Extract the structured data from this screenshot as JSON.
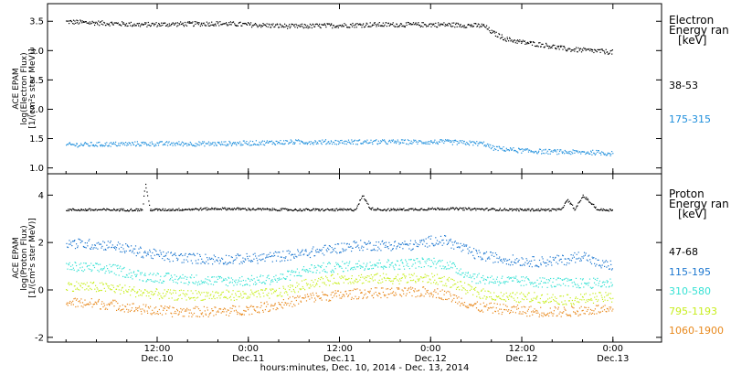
{
  "chart_data": [
    {
      "type": "scatter",
      "panel": "electron",
      "ylabel": [
        "ACE EPAM",
        "log(Electron Flux)",
        "[1/(cm²s ster MeV)]"
      ],
      "ylim": [
        0.9,
        3.8
      ],
      "yticks": [
        1.0,
        1.5,
        2.0,
        2.5,
        3.0,
        3.5
      ],
      "ytick_labels": [
        "1.0",
        "1.5",
        "2.0",
        "2.5",
        "3.0",
        "3.5"
      ],
      "legend_title": [
        "Electron",
        "Energy ran",
        "[keV]"
      ],
      "legend_placement": "right",
      "series": [
        {
          "name": "38-53",
          "color": "#000000",
          "x": [
            0,
            10,
            20,
            30,
            40,
            50,
            55,
            56,
            58,
            60,
            63,
            66,
            70,
            72
          ],
          "values": [
            3.5,
            3.45,
            3.47,
            3.42,
            3.45,
            3.45,
            3.43,
            3.32,
            3.2,
            3.15,
            3.1,
            3.03,
            3.0,
            2.98
          ]
        },
        {
          "name": "175-315",
          "color": "#1f8fdc",
          "x": [
            0,
            10,
            20,
            30,
            40,
            50,
            55,
            56,
            60,
            65,
            70,
            72
          ],
          "values": [
            1.4,
            1.42,
            1.42,
            1.45,
            1.45,
            1.45,
            1.42,
            1.35,
            1.3,
            1.28,
            1.27,
            1.25
          ]
        }
      ]
    },
    {
      "type": "scatter",
      "panel": "proton",
      "ylabel": [
        "ACE EPAM",
        "log(Proton Flux)",
        "[1/(cm²s ster MeV)]"
      ],
      "ylim": [
        -2.2,
        4.9
      ],
      "yticks": [
        -2,
        0,
        2,
        4
      ],
      "ytick_labels": [
        "-2",
        "0",
        "2",
        "4"
      ],
      "legend_title": [
        "Proton",
        "Energy ran",
        "[keV]"
      ],
      "legend_placement": "right",
      "series": [
        {
          "name": "47-68",
          "color": "#000000",
          "x": [
            0,
            8,
            10,
            10.4,
            11,
            13,
            20,
            30,
            38,
            39,
            40,
            42,
            50,
            60,
            65,
            66,
            67,
            68,
            70,
            72
          ],
          "values": [
            3.4,
            3.4,
            3.4,
            4.5,
            3.4,
            3.4,
            3.45,
            3.4,
            3.4,
            4.0,
            3.45,
            3.4,
            3.45,
            3.4,
            3.4,
            3.8,
            3.4,
            4.0,
            3.4,
            3.4
          ]
        },
        {
          "name": "115-195",
          "color": "#1f78d0",
          "x": [
            0,
            6,
            10,
            14,
            20,
            25,
            30,
            34,
            38,
            42,
            46,
            48,
            50,
            54,
            58,
            62,
            66,
            68,
            70,
            72
          ],
          "values": [
            2.0,
            1.9,
            1.6,
            1.4,
            1.3,
            1.35,
            1.5,
            1.7,
            1.9,
            1.9,
            1.9,
            2.1,
            2.1,
            1.5,
            1.3,
            1.2,
            1.3,
            1.5,
            1.1,
            1.05
          ]
        },
        {
          "name": "310-580",
          "color": "#36e2d4",
          "x": [
            0,
            6,
            10,
            14,
            20,
            24,
            28,
            32,
            36,
            40,
            44,
            48,
            50,
            54,
            58,
            62,
            66,
            70,
            72
          ],
          "values": [
            1.0,
            0.9,
            0.6,
            0.5,
            0.4,
            0.4,
            0.5,
            0.9,
            1.0,
            1.1,
            1.1,
            1.2,
            1.1,
            0.5,
            0.4,
            0.35,
            0.3,
            0.3,
            0.3
          ]
        },
        {
          "name": "795-1193",
          "color": "#c8ee1f",
          "x": [
            0,
            6,
            10,
            14,
            20,
            24,
            28,
            32,
            36,
            40,
            44,
            48,
            50,
            54,
            58,
            62,
            66,
            70,
            72
          ],
          "values": [
            0.2,
            0.1,
            -0.1,
            -0.2,
            -0.2,
            -0.2,
            -0.1,
            0.3,
            0.5,
            0.5,
            0.5,
            0.5,
            0.4,
            -0.1,
            -0.3,
            -0.3,
            -0.4,
            -0.3,
            -0.3
          ]
        },
        {
          "name": "1060-1900",
          "color": "#e8891d",
          "x": [
            0,
            6,
            10,
            14,
            20,
            24,
            28,
            32,
            36,
            40,
            44,
            48,
            50,
            54,
            58,
            62,
            66,
            70,
            72
          ],
          "values": [
            -0.5,
            -0.6,
            -0.8,
            -0.9,
            -0.9,
            -0.8,
            -0.6,
            -0.3,
            -0.2,
            -0.1,
            -0.1,
            -0.05,
            -0.2,
            -0.7,
            -0.8,
            -0.9,
            -0.9,
            -0.8,
            -0.9
          ]
        }
      ]
    }
  ],
  "x_axis": {
    "tick_hours": [
      12,
      24,
      36,
      48,
      60,
      72
    ],
    "tick_labels": [
      [
        "12:00",
        "Dec.10"
      ],
      [
        "0:00",
        "Dec.11"
      ],
      [
        "12:00",
        "Dec.11"
      ],
      [
        "0:00",
        "Dec.12"
      ],
      [
        "12:00",
        "Dec.12"
      ],
      [
        "0:00",
        "Dec.13"
      ]
    ],
    "xlabel": "hours:minutes, Dec. 10, 2014 - Dec. 13, 2014"
  }
}
